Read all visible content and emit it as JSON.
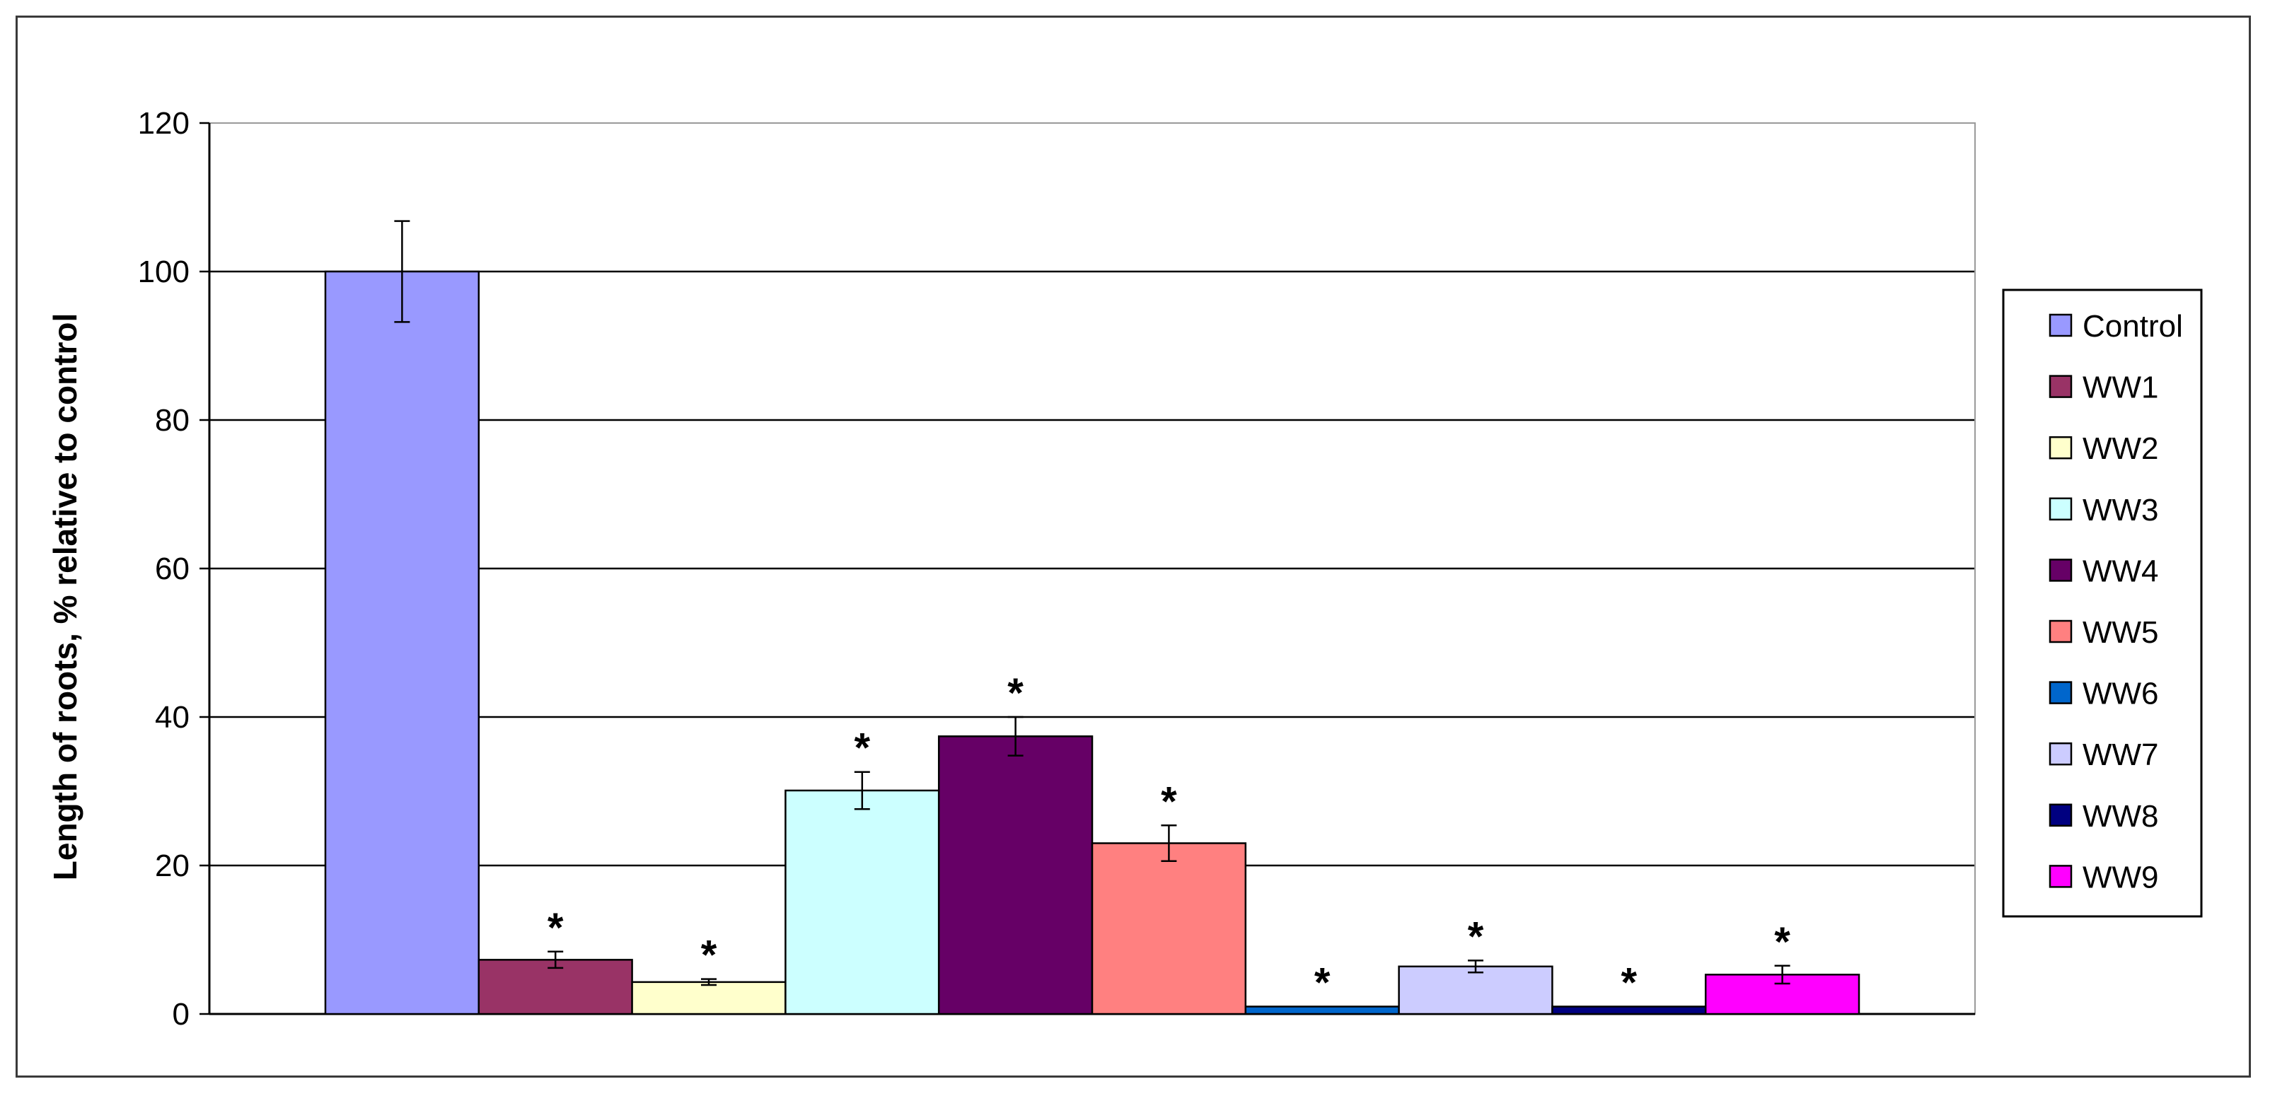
{
  "chart_data": {
    "type": "bar",
    "title": "",
    "xlabel": "",
    "ylabel": "Length of roots, % relative to control",
    "ylim": [
      0,
      120
    ],
    "yticks": [
      0,
      20,
      40,
      60,
      80,
      100,
      120
    ],
    "grid": true,
    "legend_position": "right",
    "series": [
      {
        "name": "Control",
        "value": 100,
        "error": 6.8,
        "significant": false,
        "color": "#9999FF"
      },
      {
        "name": "WW1",
        "value": 7.3,
        "error": 1.1,
        "significant": true,
        "color": "#993366"
      },
      {
        "name": "WW2",
        "value": 4.3,
        "error": 0.4,
        "significant": true,
        "color": "#FFFFCC"
      },
      {
        "name": "WW3",
        "value": 30.1,
        "error": 2.5,
        "significant": true,
        "color": "#CCFFFF"
      },
      {
        "name": "WW4",
        "value": 37.4,
        "error": 2.6,
        "significant": true,
        "color": "#660066"
      },
      {
        "name": "WW5",
        "value": 23.0,
        "error": 2.4,
        "significant": true,
        "color": "#FF8080"
      },
      {
        "name": "WW6",
        "value": 1.0,
        "error": 0,
        "significant": true,
        "color": "#0066CC"
      },
      {
        "name": "WW7",
        "value": 6.4,
        "error": 0.8,
        "significant": true,
        "color": "#CCCCFF"
      },
      {
        "name": "WW8",
        "value": 1.0,
        "error": 0,
        "significant": true,
        "color": "#000080"
      },
      {
        "name": "WW9",
        "value": 5.3,
        "error": 1.2,
        "significant": true,
        "color": "#FF00FF"
      }
    ],
    "significance_marker": "*"
  }
}
